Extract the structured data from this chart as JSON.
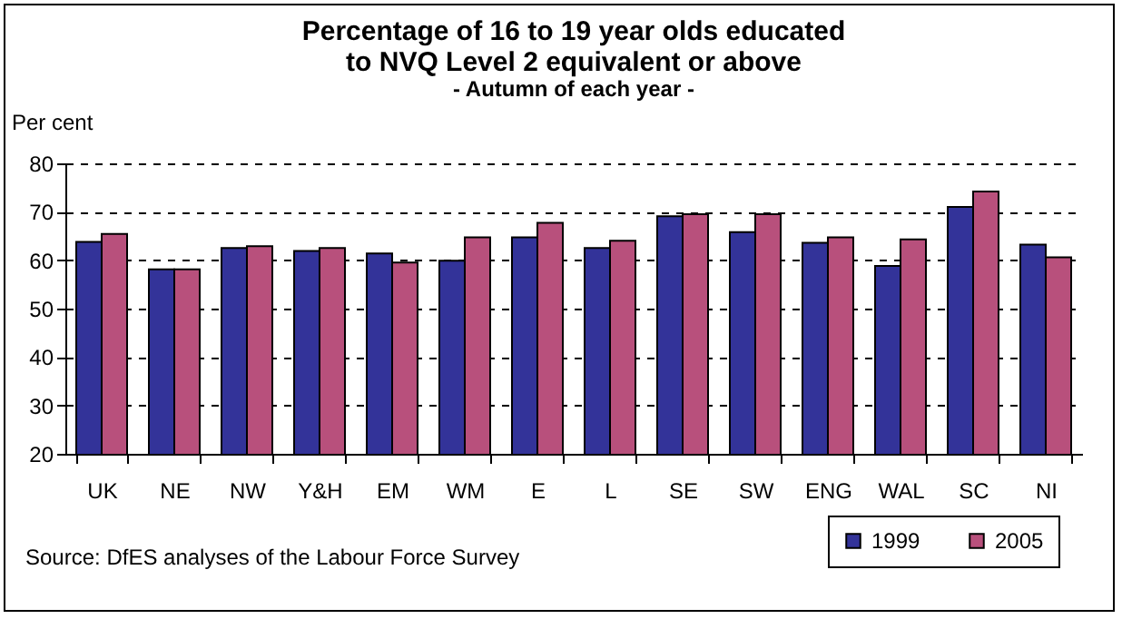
{
  "chart_data": {
    "type": "bar",
    "title": "Percentage of 16 to 19 year olds educated to NVQ Level 2 equivalent or above",
    "subtitle": "- Autumn of each year -",
    "ylabel": "Per cent",
    "categories": [
      "UK",
      "NE",
      "NW",
      "Y&H",
      "EM",
      "WM",
      "E",
      "L",
      "SE",
      "SW",
      "ENG",
      "WAL",
      "SC",
      "NI"
    ],
    "series": [
      {
        "name": "1999",
        "color": "#333399",
        "values": [
          63.8,
          58.1,
          62.5,
          61.9,
          61.4,
          59.9,
          64.7,
          62.5,
          69.1,
          65.8,
          63.6,
          58.8,
          71.0,
          63.2
        ]
      },
      {
        "name": "2005",
        "color": "#b8507c",
        "values": [
          65.4,
          58.1,
          62.9,
          62.5,
          59.5,
          64.7,
          67.7,
          64.0,
          69.5,
          69.5,
          64.7,
          64.3,
          74.2,
          60.6
        ]
      }
    ],
    "ylim": [
      20,
      80
    ],
    "yticks": [
      20,
      30,
      40,
      50,
      60,
      70,
      80
    ],
    "grid": "y",
    "legend": "bottom right",
    "annotations": [
      "Source: DfES analyses of the Labour Force Survey"
    ]
  }
}
